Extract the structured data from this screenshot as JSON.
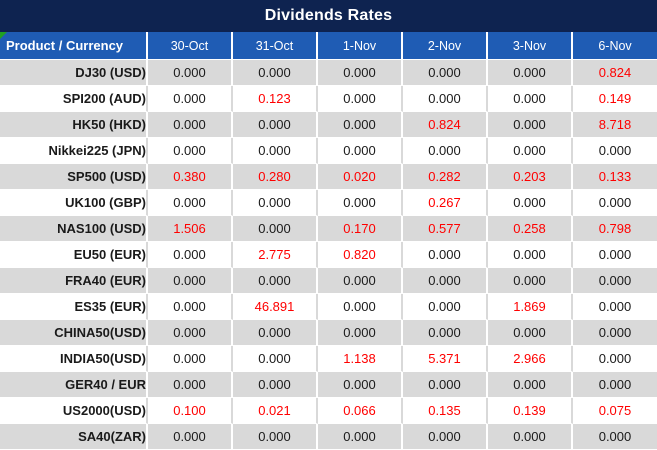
{
  "title": "Dividends Rates",
  "colors": {
    "title_bar_bg": "#0e2350",
    "header_bg": "#1f5cb4",
    "row_alt_bg": "#d9d9d9",
    "value_text": "#1a1a1a",
    "highlight_red": "#ff0000",
    "corner_flag_green": "#21a121"
  },
  "table": {
    "product_header": "Product / Currency",
    "date_columns": [
      "30-Oct",
      "31-Oct",
      "1-Nov",
      "2-Nov",
      "3-Nov",
      "6-Nov"
    ],
    "rows": [
      {
        "product": "DJ30 (USD)",
        "values": [
          "0.000",
          "0.000",
          "0.000",
          "0.000",
          "0.000",
          "0.824"
        ],
        "red": [
          false,
          false,
          false,
          false,
          false,
          true
        ]
      },
      {
        "product": "SPI200 (AUD)",
        "values": [
          "0.000",
          "0.123",
          "0.000",
          "0.000",
          "0.000",
          "0.149"
        ],
        "red": [
          false,
          true,
          false,
          false,
          false,
          true
        ]
      },
      {
        "product": "HK50 (HKD)",
        "values": [
          "0.000",
          "0.000",
          "0.000",
          "0.824",
          "0.000",
          "8.718"
        ],
        "red": [
          false,
          false,
          false,
          true,
          false,
          true
        ]
      },
      {
        "product": "Nikkei225 (JPN)",
        "values": [
          "0.000",
          "0.000",
          "0.000",
          "0.000",
          "0.000",
          "0.000"
        ],
        "red": [
          false,
          false,
          false,
          false,
          false,
          false
        ]
      },
      {
        "product": "SP500 (USD)",
        "values": [
          "0.380",
          "0.280",
          "0.020",
          "0.282",
          "0.203",
          "0.133"
        ],
        "red": [
          true,
          true,
          true,
          true,
          true,
          true
        ]
      },
      {
        "product": "UK100 (GBP)",
        "values": [
          "0.000",
          "0.000",
          "0.000",
          "0.267",
          "0.000",
          "0.000"
        ],
        "red": [
          false,
          false,
          false,
          true,
          false,
          false
        ]
      },
      {
        "product": "NAS100 (USD)",
        "values": [
          "1.506",
          "0.000",
          "0.170",
          "0.577",
          "0.258",
          "0.798"
        ],
        "red": [
          true,
          false,
          true,
          true,
          true,
          true
        ]
      },
      {
        "product": "EU50 (EUR)",
        "values": [
          "0.000",
          "2.775",
          "0.820",
          "0.000",
          "0.000",
          "0.000"
        ],
        "red": [
          false,
          true,
          true,
          false,
          false,
          false
        ]
      },
      {
        "product": "FRA40 (EUR)",
        "values": [
          "0.000",
          "0.000",
          "0.000",
          "0.000",
          "0.000",
          "0.000"
        ],
        "red": [
          false,
          false,
          false,
          false,
          false,
          false
        ]
      },
      {
        "product": "ES35 (EUR)",
        "values": [
          "0.000",
          "46.891",
          "0.000",
          "0.000",
          "1.869",
          "0.000"
        ],
        "red": [
          false,
          true,
          false,
          false,
          true,
          false
        ]
      },
      {
        "product": "CHINA50(USD)",
        "values": [
          "0.000",
          "0.000",
          "0.000",
          "0.000",
          "0.000",
          "0.000"
        ],
        "red": [
          false,
          false,
          false,
          false,
          false,
          false
        ]
      },
      {
        "product": "INDIA50(USD)",
        "values": [
          "0.000",
          "0.000",
          "1.138",
          "5.371",
          "2.966",
          "0.000"
        ],
        "red": [
          false,
          false,
          true,
          true,
          true,
          false
        ]
      },
      {
        "product": "GER40 / EUR",
        "values": [
          "0.000",
          "0.000",
          "0.000",
          "0.000",
          "0.000",
          "0.000"
        ],
        "red": [
          false,
          false,
          false,
          false,
          false,
          false
        ]
      },
      {
        "product": "US2000(USD)",
        "values": [
          "0.100",
          "0.021",
          "0.066",
          "0.135",
          "0.139",
          "0.075"
        ],
        "red": [
          true,
          true,
          true,
          true,
          true,
          true
        ]
      },
      {
        "product": "SA40(ZAR)",
        "values": [
          "0.000",
          "0.000",
          "0.000",
          "0.000",
          "0.000",
          "0.000"
        ],
        "red": [
          false,
          false,
          false,
          false,
          false,
          false
        ]
      }
    ]
  }
}
